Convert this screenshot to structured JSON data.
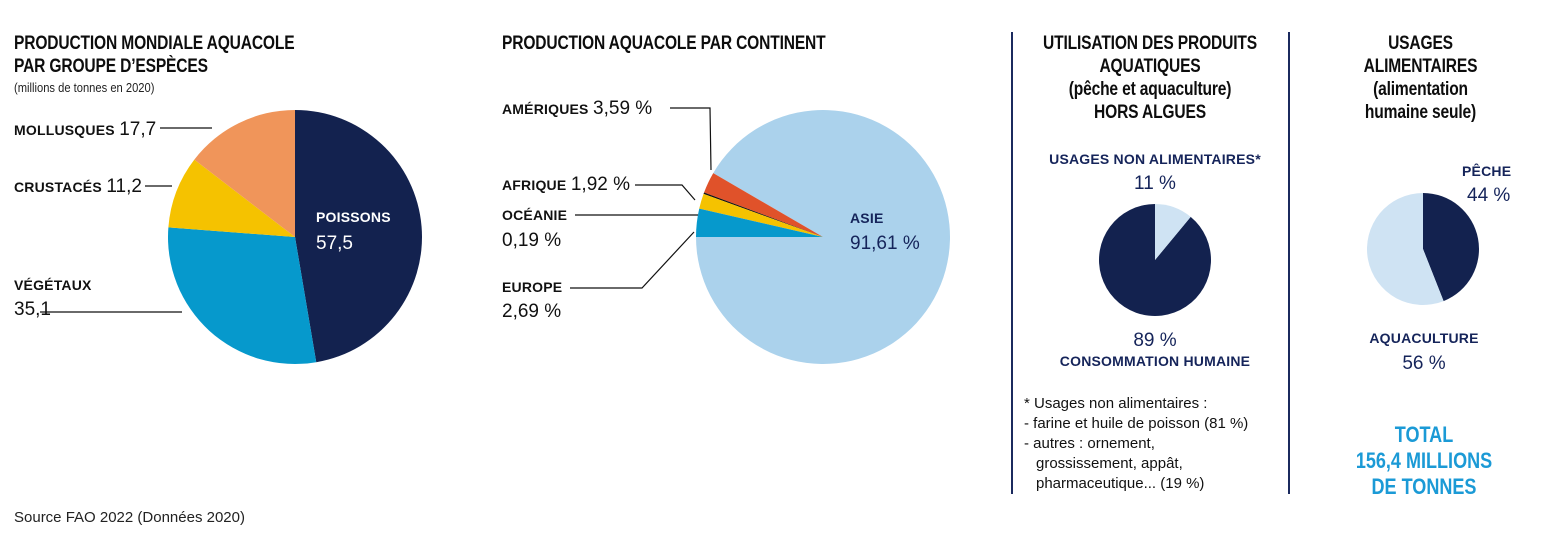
{
  "colors": {
    "navy": "#13224f",
    "cyan": "#0699cc",
    "yellow": "#f5c200",
    "orange": "#f0955a",
    "light_blue": "#abd2ec",
    "red": "#e0522a",
    "black": "#111111",
    "pale_blue": "#cfe3f3",
    "accent_text": "#1b9ad6"
  },
  "chart_data": [
    {
      "type": "pie",
      "title": "PRODUCTION MONDIALE AQUACOLE PAR GROUPE D’ESPÈCES",
      "subtitle": "(millions de tonnes en 2020)",
      "slices": [
        {
          "label": "POISSONS",
          "value": 57.5,
          "display": "57,5",
          "color": "#13224f"
        },
        {
          "label": "VÉGÉTAUX",
          "value": 35.1,
          "display": "35,1",
          "color": "#0699cc"
        },
        {
          "label": "CRUSTACÉS",
          "value": 11.2,
          "display": "11,2",
          "color": "#f5c200"
        },
        {
          "label": "MOLLUSQUES",
          "value": 17.7,
          "display": "17,7",
          "color": "#f0955a"
        }
      ]
    },
    {
      "type": "pie",
      "title": "PRODUCTION AQUACOLE PAR CONTINENT",
      "slices": [
        {
          "label": "ASIE",
          "value": 91.61,
          "display": "91,61 %",
          "color": "#abd2ec"
        },
        {
          "label": "EUROPE",
          "value": 2.69,
          "display": "2,69 %",
          "color": "#e0522a"
        },
        {
          "label": "OCÉANIE",
          "value": 0.19,
          "display": "0,19 %",
          "color": "#111111"
        },
        {
          "label": "AFRIQUE",
          "value": 1.92,
          "display": "1,92 %",
          "color": "#f5c200"
        },
        {
          "label": "AMÉRIQUES",
          "value": 3.59,
          "display": "3,59 %",
          "color": "#0699cc"
        }
      ]
    },
    {
      "type": "pie",
      "title": "UTILISATION DES PRODUITS AQUATIQUES (pêche et aquaculture) HORS ALGUES",
      "slices": [
        {
          "label": "CONSOMMATION HUMAINE",
          "value": 89,
          "display": "89 %",
          "color": "#13224f"
        },
        {
          "label": "USAGES NON ALIMENTAIRES*",
          "value": 11,
          "display": "11 %",
          "color": "#cfe3f3"
        }
      ]
    },
    {
      "type": "pie",
      "title": "USAGES ALIMENTAIRES (alimentation humaine seule)",
      "slices": [
        {
          "label": "PÊCHE",
          "value": 44,
          "display": "44 %",
          "color": "#13224f"
        },
        {
          "label": "AQUACULTURE",
          "value": 56,
          "display": "56 %",
          "color": "#cfe3f3"
        }
      ]
    }
  ],
  "text": {
    "c1_title_1": "PRODUCTION MONDIALE AQUACOLE",
    "c1_title_2": "PAR GROUPE D’ESPÈCES",
    "c1_sub": "(millions de tonnes en 2020)",
    "c2_title": "PRODUCTION AQUACOLE PAR CONTINENT",
    "c3_title_1": "UTILISATION DES PRODUITS",
    "c3_title_2": "AQUATIQUES",
    "c3_title_3": "(pêche et aquaculture)",
    "c3_title_4": "HORS ALGUES",
    "c4_title_1": "USAGES",
    "c4_title_2": "ALIMENTAIRES",
    "c4_title_3": "(alimentation",
    "c4_title_4": "humaine seule)",
    "footnote_title": "* Usages non alimentaires :",
    "footnote_1": "- farine et huile de poisson (81 %)",
    "footnote_2": "- autres : ornement,",
    "footnote_3": "grossissement, appât,",
    "footnote_4": "pharmaceutique... (19 %)",
    "total_1": "TOTAL",
    "total_2": "156,4 MILLIONS",
    "total_3": "DE TONNES",
    "source": "Source FAO 2022 (Données 2020)"
  }
}
